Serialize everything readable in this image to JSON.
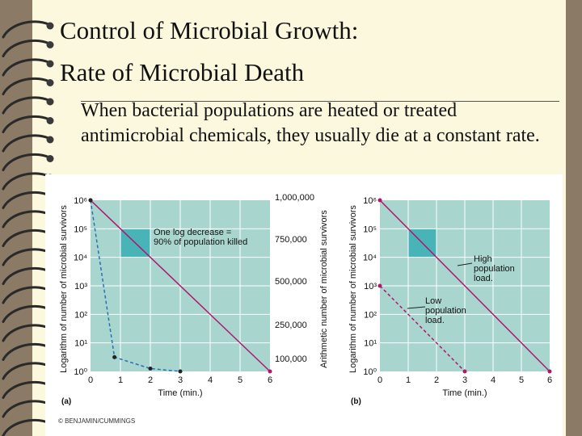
{
  "slide": {
    "title_line1": "Control of Microbial Growth:",
    "title_line2": "Rate of Microbial Death",
    "body": "When bacterial populations are heated or treated antimicrobial chemicals, they usually die at a constant rate."
  },
  "figure": {
    "credit": "© BENJAMIN/CUMMINGS",
    "colors": {
      "plot_bg": "#a8d6cf",
      "grid": "#ffffff",
      "line": "#b0176c",
      "dashed_blue": "#2b6fb5",
      "highlight": "#49b4b8"
    }
  },
  "chart_data": [
    {
      "type": "line",
      "panel_label": "(a)",
      "xlabel": "Time (min.)",
      "ylabel": "Logarithm of number of microbial survivors",
      "ylabel_right": "Arithmetic number of microbial survivors",
      "x_ticks": [
        "0",
        "1",
        "2",
        "3",
        "4",
        "5",
        "6"
      ],
      "y_ticks": [
        "10⁰",
        "10¹",
        "10²",
        "10³",
        "10⁴",
        "10⁵",
        "10⁶"
      ],
      "y_ticks_right": [
        "100,000",
        "250,000",
        "500,000",
        "750,000",
        "1,000,000"
      ],
      "xlim": [
        0,
        6
      ],
      "ylim_log10": [
        0,
        6
      ],
      "annotation": "One log decrease = 90% of population killed",
      "series": [
        {
          "style": "solid",
          "x": [
            0,
            6
          ],
          "log10_y": [
            6,
            0
          ]
        },
        {
          "style": "dashed",
          "x": [
            0,
            0.8,
            2,
            3
          ],
          "log10_y": [
            6,
            0.5,
            0.1,
            0
          ]
        }
      ]
    },
    {
      "type": "line",
      "panel_label": "(b)",
      "xlabel": "Time (min.)",
      "ylabel": "Logarithm of number of microbial survivors",
      "x_ticks": [
        "0",
        "1",
        "2",
        "3",
        "4",
        "5",
        "6"
      ],
      "y_ticks": [
        "10⁰",
        "10¹",
        "10²",
        "10³",
        "10⁴",
        "10⁵",
        "10⁶"
      ],
      "xlim": [
        0,
        6
      ],
      "ylim_log10": [
        0,
        6
      ],
      "annotations": [
        "High population load.",
        "Low population load."
      ],
      "series": [
        {
          "name": "High population load.",
          "style": "solid",
          "x": [
            0,
            6
          ],
          "log10_y": [
            6,
            0
          ]
        },
        {
          "name": "Low population load.",
          "style": "dashed",
          "x": [
            0,
            3
          ],
          "log10_y": [
            3,
            0
          ]
        }
      ]
    }
  ]
}
